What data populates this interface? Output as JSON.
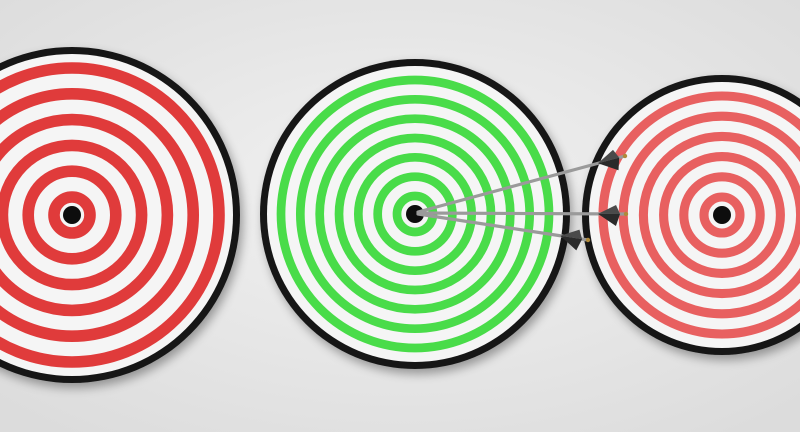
{
  "scene": {
    "background_color": "#e9e9e9",
    "targets": [
      {
        "name": "left-target",
        "ring_color": "#e03a3a",
        "rim_color": "#161616",
        "face_color": "#f5f5f5",
        "rings": 6,
        "center": "black-dot"
      },
      {
        "name": "center-target",
        "ring_color": "#48dc48",
        "rim_color": "#161616",
        "face_color": "#f5f5f5",
        "rings": 7,
        "center": "black-dot",
        "arrows_hit": 3
      },
      {
        "name": "right-target",
        "ring_color": "#e86060",
        "rim_color": "#161616",
        "face_color": "#f5f5f5",
        "rings": 6,
        "center": "black-dot"
      }
    ],
    "arrows": [
      {
        "name": "arrow-upper",
        "fletching_color": "#2a2a2a",
        "shaft_color": "#9a9a9a"
      },
      {
        "name": "arrow-middle",
        "fletching_color": "#2a2a2a",
        "shaft_color": "#9a9a9a"
      },
      {
        "name": "arrow-lower",
        "fletching_color": "#2a2a2a",
        "shaft_color": "#9a9a9a"
      }
    ]
  }
}
